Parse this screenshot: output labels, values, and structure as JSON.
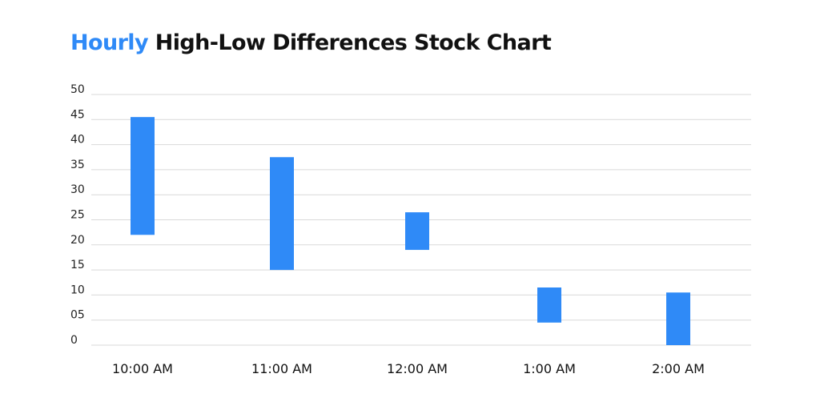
{
  "title": {
    "accent": "Hourly",
    "rest": "High-Low Differences Stock Chart"
  },
  "colors": {
    "accent": "#2f8af7",
    "bar": "#2f8af7",
    "grid": "#d9d9d9",
    "text": "#111111"
  },
  "chart_data": {
    "type": "bar",
    "title": "Hourly High-Low Differences Stock Chart",
    "xlabel": "",
    "ylabel": "",
    "categories": [
      "10:00 AM",
      "11:00 AM",
      "12:00 AM",
      "1:00 AM",
      "2:00 AM"
    ],
    "series": [
      {
        "low": [
          22,
          15,
          19,
          4.5,
          0
        ],
        "high": [
          45.5,
          37.5,
          26.5,
          11.5,
          10.5
        ]
      }
    ],
    "yticks": [
      "0",
      "05",
      "10",
      "15",
      "20",
      "25",
      "30",
      "35",
      "40",
      "45",
      "50"
    ],
    "ylim": [
      0,
      50
    ],
    "grid": true,
    "legend": "none"
  }
}
